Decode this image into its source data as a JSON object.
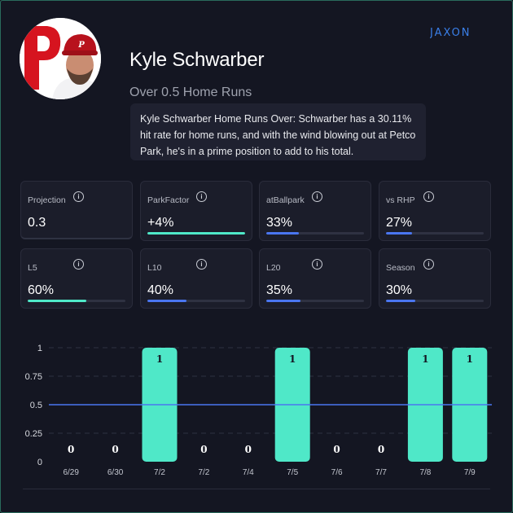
{
  "brand": {
    "logo_text": "JAXON",
    "accent": "#4fe8c8",
    "blue": "#4a76f0"
  },
  "player": {
    "name": "Kyle Schwarber",
    "team_logo_icon": "phillies-p-icon",
    "bet_line": "Over 0.5 Home Runs",
    "blurb": "Kyle Schwarber Home Runs Over: Schwarber has a 30.11% hit rate for home runs, and with the wind blowing out at Petco Park, he's in a prime position to add to his total."
  },
  "stats": [
    {
      "label": "Projection",
      "value": "0.3",
      "fill": null
    },
    {
      "label": "ParkFactor",
      "value": "+4%",
      "fill": 1.0,
      "color": "#4fe8c8"
    },
    {
      "label": "atBallpark",
      "value": "33%",
      "fill": 0.33,
      "color": "#4a76f0"
    },
    {
      "label": "vs RHP",
      "value": "27%",
      "fill": 0.27,
      "color": "#4a76f0"
    },
    {
      "label": "L5",
      "value": "60%",
      "fill": 0.6,
      "color": "#4fe8c8"
    },
    {
      "label": "L10",
      "value": "40%",
      "fill": 0.4,
      "color": "#4a76f0"
    },
    {
      "label": "L20",
      "value": "35%",
      "fill": 0.35,
      "color": "#4a76f0"
    },
    {
      "label": "Season",
      "value": "30%",
      "fill": 0.3,
      "color": "#4a76f0"
    }
  ],
  "chart_data": {
    "type": "bar",
    "categories": [
      "6/29",
      "6/30",
      "7/2",
      "7/2",
      "7/4",
      "7/5",
      "7/6",
      "7/7",
      "7/8",
      "7/9"
    ],
    "values": [
      0,
      0,
      1,
      0,
      0,
      1,
      0,
      0,
      1,
      1
    ],
    "value_labels": [
      "0",
      "0",
      "1",
      "0",
      "0",
      "1",
      "0",
      "0",
      "1",
      "1"
    ],
    "y_ticks": [
      "0",
      "0.25",
      "0.5",
      "0.75",
      "1"
    ],
    "ylim": [
      0,
      1
    ],
    "line_value": 0.5,
    "grid": true,
    "bar_color": "#4fe8c8",
    "line_color": "#4a76f0"
  }
}
